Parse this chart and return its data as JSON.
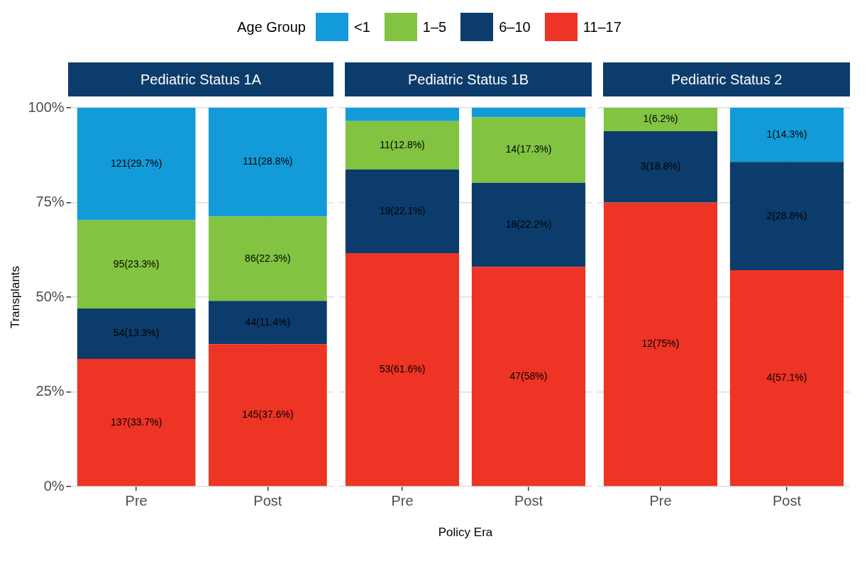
{
  "chart_data": [
    {
      "type": "bar",
      "title": "Pediatric Status 1A",
      "ylabel": "Transplants",
      "legend_title": "Age Group",
      "legend": "top",
      "stacked": true,
      "grid": true,
      "categories": [
        "Pre",
        "Post"
      ],
      "ylim": [
        0,
        100
      ],
      "yticks": [
        {
          "value": 0,
          "label": "0%"
        },
        {
          "value": 25,
          "label": "25%"
        },
        {
          "value": 50,
          "label": "50%"
        },
        {
          "value": 75,
          "label": "75%"
        },
        {
          "value": 100,
          "label": "100%"
        }
      ],
      "series": [
        {
          "name": "11–17",
          "color": "#ee3424",
          "values": [
            33.7,
            37.6
          ],
          "value_labels": [
            "137(33.7%)",
            "145(37.6%)"
          ]
        },
        {
          "name": "6–10",
          "color": "#0c3c6c",
          "values": [
            13.3,
            11.4
          ],
          "value_labels": [
            "54(13.3%)",
            "44(11.4%)"
          ]
        },
        {
          "name": "1–5",
          "color": "#82c341",
          "values": [
            23.3,
            22.3
          ],
          "value_labels": [
            "95(23.3%)",
            "86(22.3%)"
          ]
        },
        {
          "name": "<1",
          "color": "#129bd8",
          "values": [
            29.7,
            28.8
          ],
          "value_labels": [
            "121(29.7%)",
            "111(28.8%)"
          ]
        }
      ]
    },
    {
      "type": "bar",
      "title": "Pediatric Status 1B",
      "xlabel": "Policy Era",
      "stacked": true,
      "grid": true,
      "tick_labels": "x",
      "categories": [
        "Pre",
        "Post"
      ],
      "ylim": [
        0,
        100
      ],
      "yticks": [
        0,
        25,
        50,
        75,
        100
      ],
      "series": [
        {
          "color": "#ee3424",
          "values": [
            61.6,
            58
          ],
          "value_labels": [
            "53(61.6%)",
            "47(58%)"
          ]
        },
        {
          "color": "#0c3c6c",
          "values": [
            22.1,
            22.2
          ],
          "value_labels": [
            "19(22.1%)",
            "18(22.2%)"
          ]
        },
        {
          "color": "#82c341",
          "values": [
            12.8,
            17.3
          ],
          "value_labels": [
            "11(12.8%)",
            "14(17.3%)"
          ]
        },
        {
          "color": "#129bd8",
          "values": [
            3.5,
            2.5
          ],
          "value_labels": [
            null,
            null
          ]
        }
      ]
    },
    {
      "type": "bar",
      "title": "Pediatric Status 2",
      "stacked": true,
      "grid": true,
      "tick_labels": "x",
      "categories": [
        "Pre",
        "Post"
      ],
      "ylim": [
        0,
        100
      ],
      "yticks": [
        0,
        25,
        50,
        75,
        100
      ],
      "series": [
        {
          "color": "#ee3424",
          "values": [
            75,
            57.1
          ],
          "value_labels": [
            "12(75%)",
            "4(57.1%)"
          ]
        },
        {
          "color": "#0c3c6c",
          "values": [
            18.8,
            28.6
          ],
          "value_labels": [
            "3(18.8%)",
            "2(28.6%)"
          ]
        },
        {
          "color": "#82c341",
          "values": [
            6.2,
            0
          ],
          "value_labels": [
            "1(6.2%)",
            null
          ]
        },
        {
          "color": "#129bd8",
          "values": [
            0,
            14.3
          ],
          "value_labels": [
            null,
            "1(14.3%)"
          ]
        }
      ]
    }
  ]
}
